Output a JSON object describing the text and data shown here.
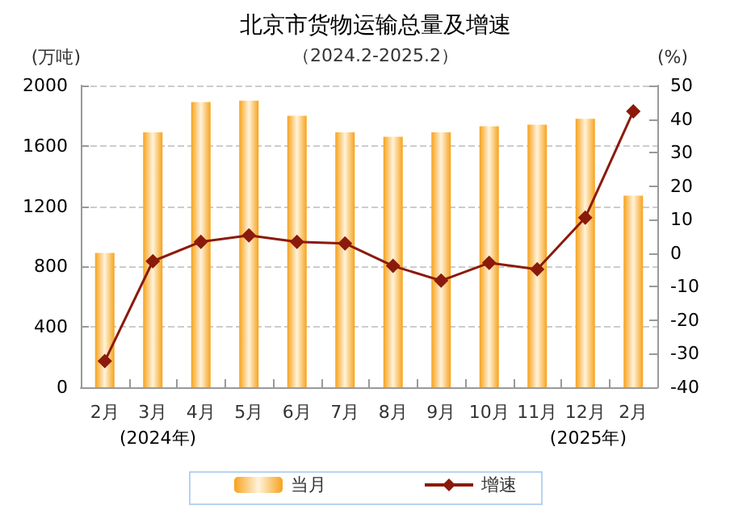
{
  "chart_data": {
    "type": "bar",
    "title": "北京市货物运输总量及增速",
    "subtitle": "（2024.2-2025.2）",
    "ylabel": "(万吨)",
    "y2label": "(%)",
    "categories": [
      "2月",
      "3月",
      "4月",
      "5月",
      "6月",
      "7月",
      "8月",
      "9月",
      "10月",
      "11月",
      "12月",
      "2月"
    ],
    "series": [
      {
        "name": "当月",
        "color": "#f7a21b",
        "values": [
          890,
          1690,
          1890,
          1900,
          1800,
          1690,
          1660,
          1690,
          1730,
          1740,
          1780,
          1270
        ]
      },
      {
        "name": "增速",
        "type": "line",
        "axis": "y2",
        "color": "#8b1a0a",
        "marker": "diamond",
        "values": [
          -32.2,
          -2.4,
          3.4,
          5.3,
          3.4,
          2.9,
          -3.8,
          -8.2,
          -2.9,
          -4.8,
          10.6,
          42.3
        ]
      }
    ],
    "ylim": [
      0,
      2000
    ],
    "yticks": [
      0,
      400,
      800,
      1200,
      1600,
      2000
    ],
    "y2lim": [
      -40,
      50
    ],
    "y2ticks": [
      -40,
      -30,
      -20,
      -10,
      0,
      10,
      20,
      30,
      40,
      50
    ],
    "annotations": [
      "(2024年)",
      "(2025年)"
    ],
    "grid": "y",
    "legend": "bottom"
  }
}
